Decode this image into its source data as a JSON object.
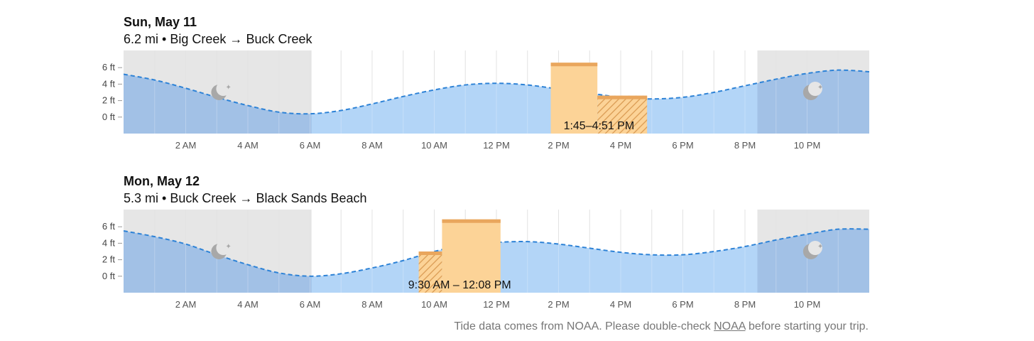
{
  "days": [
    {
      "title": "Sun, May 11",
      "distance": "6.2 mi",
      "route_from": "Big Creek",
      "route_to": "Buck Creek",
      "window_label": "1:45–4:51 PM",
      "window_start_h": 13.75,
      "window_end_h": 16.85,
      "blocks": [
        {
          "start_h": 13.75,
          "end_h": 15.25,
          "level_ft": 6.6,
          "hatched": false
        },
        {
          "start_h": 15.25,
          "end_h": 16.85,
          "level_ft": 2.6,
          "hatched": true
        }
      ],
      "night_segments": [
        [
          0,
          6.05
        ],
        [
          20.4,
          24
        ]
      ],
      "moon_hours": [
        3.05,
        22.1
      ],
      "tide": [
        [
          0,
          5.2
        ],
        [
          1,
          4.5
        ],
        [
          2,
          3.5
        ],
        [
          3,
          2.4
        ],
        [
          4,
          1.4
        ],
        [
          5,
          0.6
        ],
        [
          6,
          0.4
        ],
        [
          7,
          0.8
        ],
        [
          8,
          1.6
        ],
        [
          9,
          2.5
        ],
        [
          10,
          3.3
        ],
        [
          11,
          3.9
        ],
        [
          12,
          4.1
        ],
        [
          13,
          3.9
        ],
        [
          14,
          3.4
        ],
        [
          15,
          2.9
        ],
        [
          16,
          2.4
        ],
        [
          17,
          2.2
        ],
        [
          18,
          2.4
        ],
        [
          19,
          3.0
        ],
        [
          20,
          3.8
        ],
        [
          21,
          4.6
        ],
        [
          22,
          5.3
        ],
        [
          23,
          5.7
        ],
        [
          24,
          5.5
        ]
      ]
    },
    {
      "title": "Mon, May 12",
      "distance": "5.3 mi",
      "route_from": "Buck Creek",
      "route_to": "Black Sands Beach",
      "window_label": "9:30 AM – 12:08 PM",
      "window_start_h": 9.5,
      "window_end_h": 12.133,
      "blocks": [
        {
          "start_h": 9.5,
          "end_h": 10.25,
          "level_ft": 3.0,
          "hatched": true
        },
        {
          "start_h": 10.25,
          "end_h": 12.133,
          "level_ft": 6.9,
          "hatched": false
        }
      ],
      "night_segments": [
        [
          0,
          6.05
        ],
        [
          20.4,
          24
        ]
      ],
      "moon_hours": [
        3.05,
        22.1
      ],
      "tide": [
        [
          0,
          5.5
        ],
        [
          1,
          4.8
        ],
        [
          2,
          3.9
        ],
        [
          3,
          2.6
        ],
        [
          4,
          1.4
        ],
        [
          5,
          0.4
        ],
        [
          6,
          0.0
        ],
        [
          7,
          0.3
        ],
        [
          8,
          1.0
        ],
        [
          9,
          1.9
        ],
        [
          10,
          3.0
        ],
        [
          11,
          3.8
        ],
        [
          12,
          4.1
        ],
        [
          13,
          4.2
        ],
        [
          14,
          3.9
        ],
        [
          15,
          3.4
        ],
        [
          16,
          2.9
        ],
        [
          17,
          2.6
        ],
        [
          18,
          2.6
        ],
        [
          19,
          3.0
        ],
        [
          20,
          3.6
        ],
        [
          21,
          4.4
        ],
        [
          22,
          5.1
        ],
        [
          23,
          5.7
        ],
        [
          24,
          5.7
        ]
      ]
    }
  ],
  "y_axis_labels": [
    "6 ft",
    "4 ft",
    "2 ft",
    "0 ft"
  ],
  "y_axis_values": [
    6,
    4,
    2,
    0
  ],
  "x_axis_labels": [
    "2 AM",
    "4 AM",
    "6 AM",
    "8 AM",
    "10 AM",
    "12 PM",
    "2 PM",
    "4 PM",
    "6 PM",
    "8 PM",
    "10 PM"
  ],
  "x_axis_hours": [
    2,
    4,
    6,
    8,
    10,
    12,
    14,
    16,
    18,
    20,
    22
  ],
  "route_arrow": "→",
  "separator": "•",
  "footer": {
    "text_before": "Tide data comes from NOAA. Please double-check ",
    "link": "NOAA",
    "text_after": " before starting your trip."
  },
  "colors": {
    "water": "#b3d5f7",
    "water_night": "#a2c1e6",
    "tide_line": "#2d82d6",
    "night_bg": "#e6e6e6",
    "block_fill": "#fcd397",
    "block_top": "#e9a65d",
    "hatch": "#d99a52",
    "grid": "#dadada",
    "moon": "#a8a8a8"
  }
}
